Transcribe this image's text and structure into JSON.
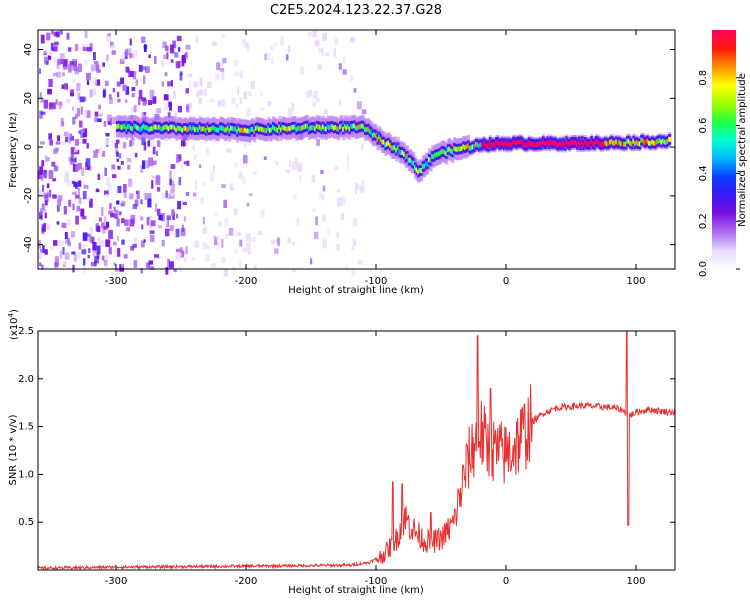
{
  "figure_title": "C2E5.2024.123.22.37.G28",
  "colors": {
    "snr_line": "#e83030",
    "colormap": [
      "#ffffff",
      "#e8d8ff",
      "#b06cf0",
      "#7a10e0",
      "#3a18f0",
      "#0a40ff",
      "#00b8ff",
      "#00ffd0",
      "#20ff40",
      "#a0ff00",
      "#ffff00",
      "#ff9000",
      "#ff1a10",
      "#ff0060"
    ]
  },
  "chart_data": [
    {
      "type": "heatmap",
      "xlabel": "Height of straight line (km)",
      "ylabel": "Frequency (Hz)",
      "xlim": [
        -360,
        130
      ],
      "ylim": [
        -50,
        48
      ],
      "x_ticks": [
        -300,
        -200,
        -100,
        0,
        100
      ],
      "y_ticks": [
        -40,
        -20,
        0,
        20,
        40
      ],
      "colorbar": {
        "label": "Normalized spectral amplitude",
        "range": [
          0,
          1
        ],
        "ticks": [
          0.0,
          0.2,
          0.4,
          0.6,
          0.8
        ]
      },
      "ridge": [
        {
          "x": -300,
          "freq": 8
        },
        {
          "x": -250,
          "freq": 7.5
        },
        {
          "x": -200,
          "freq": 7
        },
        {
          "x": -150,
          "freq": 8
        },
        {
          "x": -110,
          "freq": 8
        },
        {
          "x": -95,
          "freq": 2
        },
        {
          "x": -80,
          "freq": -2
        },
        {
          "x": -68,
          "freq": -10
        },
        {
          "x": -55,
          "freq": -3
        },
        {
          "x": -40,
          "freq": -1
        },
        {
          "x": -20,
          "freq": 1
        },
        {
          "x": 0,
          "freq": 1.5
        },
        {
          "x": 50,
          "freq": 1.5
        },
        {
          "x": 100,
          "freq": 2
        },
        {
          "x": 125,
          "freq": 2.5
        }
      ]
    },
    {
      "type": "line",
      "xlabel": "Height of straight line (km)",
      "ylabel": "SNR (10 * v/v)",
      "y_multiplier": "(x10",
      "y_multiplier_exp": "4",
      "multiplier_close": ")",
      "xlim": [
        -360,
        130
      ],
      "ylim": [
        0,
        2.5
      ],
      "x_ticks": [
        -300,
        -200,
        -100,
        0,
        100
      ],
      "y_ticks": [
        0.5,
        1.0,
        1.5,
        2.0,
        2.5
      ],
      "series": [
        {
          "x": [
            -360,
            -300,
            -200,
            -120,
            -105,
            -95,
            -85,
            -78,
            -70,
            -62,
            -55,
            -48,
            -40,
            -35,
            -30,
            -25,
            -20,
            -15,
            -10,
            0,
            10,
            20,
            30,
            40,
            60,
            80,
            88,
            92,
            96,
            100,
            110,
            120,
            130
          ],
          "y": [
            0.02,
            0.03,
            0.04,
            0.05,
            0.08,
            0.15,
            0.3,
            0.55,
            0.4,
            0.3,
            0.3,
            0.35,
            0.5,
            0.8,
            1.1,
            1.3,
            1.45,
            1.3,
            1.25,
            1.2,
            1.35,
            1.55,
            1.65,
            1.7,
            1.72,
            1.7,
            1.68,
            1.65,
            1.62,
            1.65,
            1.68,
            1.66,
            1.65
          ],
          "spikes": [
            {
              "x": -87,
              "y": 0.92
            },
            {
              "x": -80,
              "y": 0.9
            },
            {
              "x": -58,
              "y": 0.6
            },
            {
              "x": -30,
              "y": 1.3
            },
            {
              "x": -22,
              "y": 2.45
            },
            {
              "x": -12,
              "y": 1.9
            },
            {
              "x": 93,
              "y": 2.5
            },
            {
              "x": 94,
              "y": 0.47
            }
          ]
        }
      ]
    }
  ]
}
